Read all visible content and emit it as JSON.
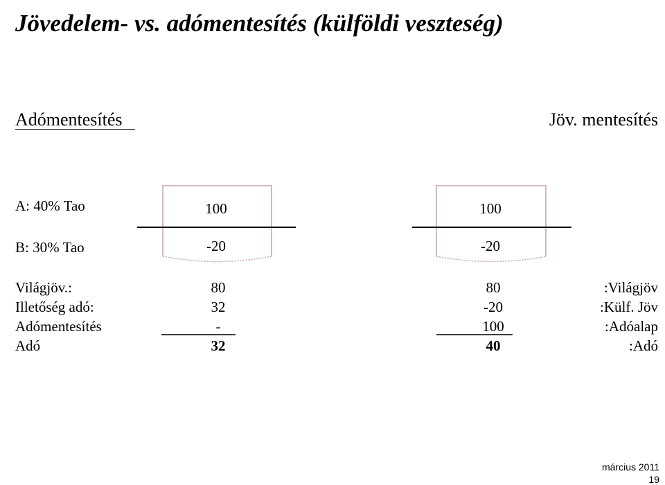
{
  "title": "Jövedelem- vs. adómentesítés (külföldi veszteség)",
  "left_heading": "Adómentesítés",
  "right_heading": "Jöv. mentesítés",
  "rates": [
    "A: 40% Tao",
    "B: 30% Tao"
  ],
  "left_box": [
    "100",
    "-20"
  ],
  "right_box": [
    "100",
    "-20"
  ],
  "table": {
    "left_labels": [
      "Világjöv.:",
      "Illetőség adó:",
      "Adómentesítés",
      "Adó"
    ],
    "left_values": [
      "80",
      "32",
      "-",
      "32"
    ],
    "right_values": [
      "80",
      "-20",
      "100",
      "40"
    ],
    "right_labels": [
      ":Világjöv",
      ":Külf. Jöv",
      ":Adóalap",
      ":Adó"
    ]
  },
  "footer": {
    "date": "március 2011",
    "page": "19"
  }
}
